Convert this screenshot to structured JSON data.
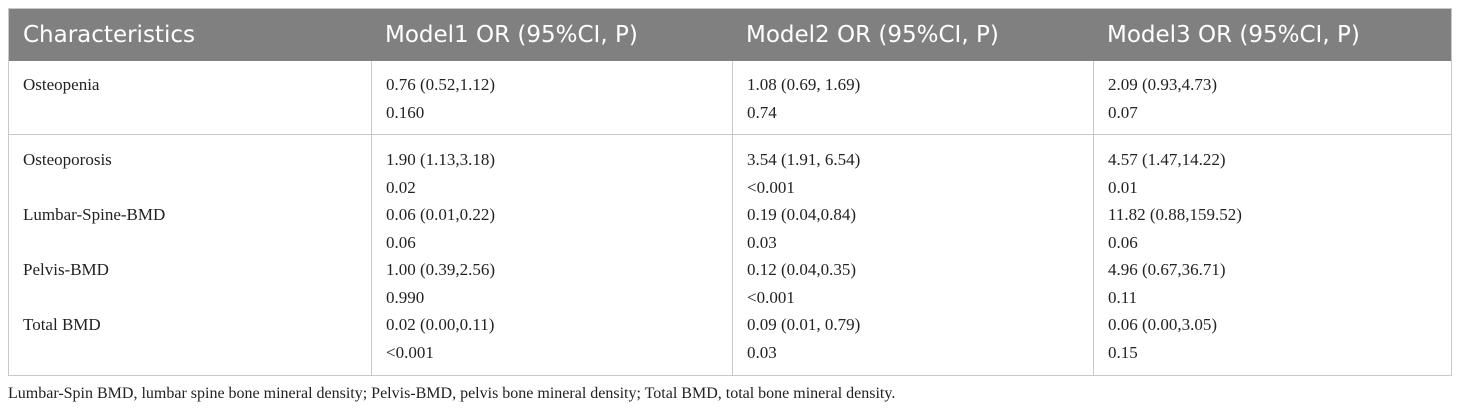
{
  "headers": [
    "Characteristics",
    "Model1 OR (95%CI, P)",
    "Model2 OR (95%CI, P)",
    "Model3 OR (95%CI, P)"
  ],
  "rows": [
    {
      "name": "Osteopenia",
      "m1": {
        "or": "0.76 (0.52,1.12)",
        "p": "0.160"
      },
      "m2": {
        "or": "1.08 (0.69, 1.69)",
        "p": "0.74"
      },
      "m3": {
        "or": "2.09 (0.93,4.73)",
        "p": "0.07"
      }
    },
    {
      "name": "Osteoporosis",
      "m1": {
        "or": "1.90 (1.13,3.18)",
        "p": "0.02"
      },
      "m2": {
        "or": "3.54 (1.91, 6.54)",
        "p": "<0.001"
      },
      "m3": {
        "or": "4.57 (1.47,14.22)",
        "p": "0.01"
      }
    },
    {
      "name": "Lumbar-Spine-BMD",
      "m1": {
        "or": "0.06 (0.01,0.22)",
        "p": "0.06"
      },
      "m2": {
        "or": "0.19 (0.04,0.84)",
        "p": "0.03"
      },
      "m3": {
        "or": "11.82 (0.88,159.52)",
        "p": "0.06"
      }
    },
    {
      "name": "Pelvis-BMD",
      "m1": {
        "or": "1.00 (0.39,2.56)",
        "p": "0.990"
      },
      "m2": {
        "or": "0.12 (0.04,0.35)",
        "p": "<0.001"
      },
      "m3": {
        "or": "4.96 (0.67,36.71)",
        "p": "0.11"
      }
    },
    {
      "name": "Total BMD",
      "m1": {
        "or": "0.02 (0.00,0.11)",
        "p": "<0.001"
      },
      "m2": {
        "or": "0.09 (0.01, 0.79)",
        "p": "0.03"
      },
      "m3": {
        "or": "0.06 (0.00,3.05)",
        "p": "0.15"
      }
    }
  ],
  "footnote": "Lumbar-Spin BMD, lumbar spine bone mineral density; Pelvis-BMD, pelvis bone mineral density; Total BMD, total bone mineral density.",
  "colors": {
    "header_bg": "#808080",
    "header_text": "#ffffff",
    "rule": "#c8c8c8",
    "body_text": "#222222"
  }
}
